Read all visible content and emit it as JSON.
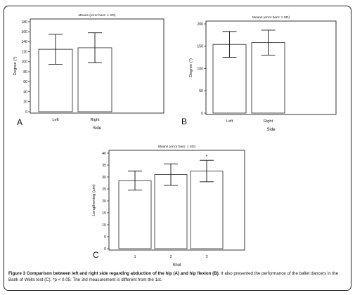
{
  "chart_data": [
    {
      "panel": "A",
      "type": "bar",
      "title": "Means (error bars: 1 SD)",
      "xlabel": "Side",
      "ylabel": "Degree (°)",
      "categories": [
        "Left",
        "Right"
      ],
      "values": [
        125,
        128
      ],
      "errors": [
        30,
        30
      ],
      "ylim": [
        0,
        180
      ],
      "yticks": [
        0,
        20,
        40,
        60,
        80,
        100,
        120,
        140,
        160,
        180
      ],
      "annotations": []
    },
    {
      "panel": "B",
      "type": "bar",
      "title": "Means (error bars: 1 SD)",
      "xlabel": "Side",
      "ylabel": "Degree (°)",
      "categories": [
        "Left",
        "Right"
      ],
      "values": [
        154,
        158
      ],
      "errors": [
        29,
        28
      ],
      "ylim": [
        0,
        200
      ],
      "yticks": [
        0,
        50,
        100,
        150,
        200
      ],
      "annotations": []
    },
    {
      "panel": "C",
      "type": "bar",
      "title": "Means (error bars: 1 SD)",
      "xlabel": "Shot",
      "ylabel": "Lengthening (cm)",
      "categories": [
        "1",
        "2",
        "3"
      ],
      "values": [
        28.5,
        31,
        32.5
      ],
      "errors": [
        4,
        4.5,
        4.5
      ],
      "ylim": [
        0,
        40
      ],
      "yticks": [
        0,
        5,
        10,
        15,
        20,
        25,
        30,
        35,
        40
      ],
      "annotations": [
        "",
        "",
        "*"
      ]
    }
  ],
  "caption": {
    "label": "Figure 3",
    "bold_text": "Comparison between left and right side regarding abduction of the hip (A) and hip flexion (B)",
    "rest": ". It also presented the performance of the ballet dancers in the Bank of Wells test (C). *p < 0.05: The 3rd measurement is different from the 1st."
  }
}
